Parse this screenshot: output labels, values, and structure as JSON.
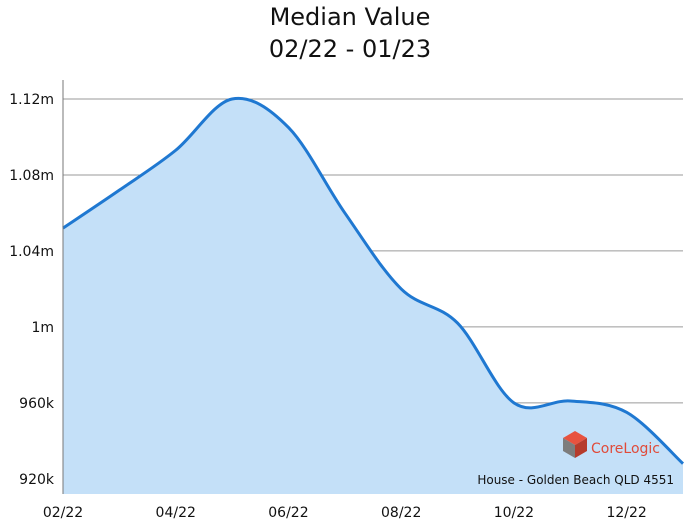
{
  "title": "Median Value",
  "subtitle": "02/22 - 01/23",
  "caption": "House - Golden Beach QLD 4551",
  "brand": {
    "name": "CoreLogic",
    "icon": "corelogic-cube-icon"
  },
  "colors": {
    "line": "#1f78d1",
    "fill": "#c4e0f8",
    "grid": "#9a9a9a",
    "brand": "#e04b3a"
  },
  "chart_data": {
    "type": "area",
    "title": "Median Value",
    "subtitle": "02/22 - 01/23",
    "xlabel": "",
    "ylabel": "",
    "x": [
      "02/22",
      "03/22",
      "04/22",
      "05/22",
      "06/22",
      "07/22",
      "08/22",
      "09/22",
      "10/22",
      "11/22",
      "12/22",
      "01/23"
    ],
    "xticks": [
      "02/22",
      "04/22",
      "06/22",
      "08/22",
      "10/22",
      "12/22"
    ],
    "values": [
      1052000,
      1072000,
      1093000,
      1120000,
      1105000,
      1060000,
      1020000,
      1002000,
      960000,
      961000,
      955000,
      928000
    ],
    "ylim": [
      912000,
      1130000
    ],
    "yticks": [
      {
        "value": 920000,
        "label": "920k"
      },
      {
        "value": 960000,
        "label": "960k"
      },
      {
        "value": 1000000,
        "label": "1m"
      },
      {
        "value": 1040000,
        "label": "1.04m"
      },
      {
        "value": 1080000,
        "label": "1.08m"
      },
      {
        "value": 1120000,
        "label": "1.12m"
      }
    ],
    "grid": true,
    "legend": "none"
  }
}
